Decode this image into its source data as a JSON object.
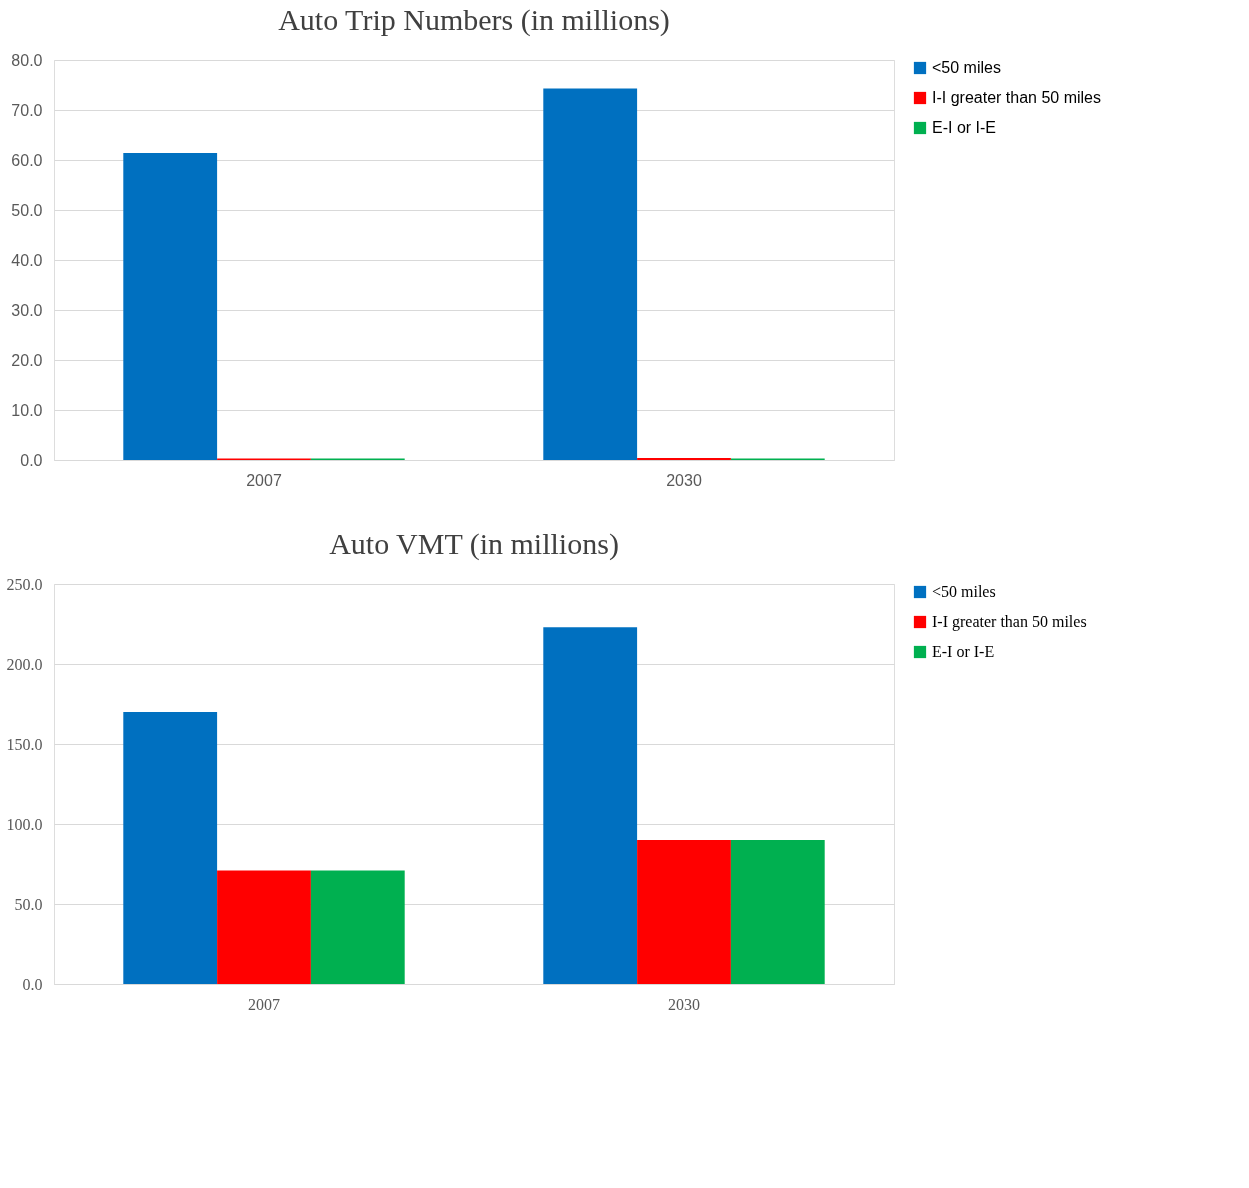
{
  "chart_data": [
    {
      "type": "bar",
      "title": "Auto Trip Numbers (in millions)",
      "categories": [
        "2007",
        "2030"
      ],
      "series": [
        {
          "name": "<50 miles",
          "color": "#0070c0",
          "values": [
            61.4,
            74.3
          ]
        },
        {
          "name": "I-I greater than 50 miles",
          "color": "#ff0000",
          "values": [
            0.3,
            0.4
          ]
        },
        {
          "name": "E-I or I-E",
          "color": "#00b050",
          "values": [
            0.3,
            0.3
          ]
        }
      ],
      "ylim": [
        0,
        80
      ],
      "yticks": [
        {
          "value": 0,
          "label": "0.0"
        },
        {
          "value": 10,
          "label": "10.0"
        },
        {
          "value": 20,
          "label": "20.0"
        },
        {
          "value": 30,
          "label": "30.0"
        },
        {
          "value": 40,
          "label": "40.0"
        },
        {
          "value": 50,
          "label": "50.0"
        },
        {
          "value": 60,
          "label": "60.0"
        },
        {
          "value": 70,
          "label": "70.0"
        },
        {
          "value": 80,
          "label": "80.0"
        }
      ],
      "grid": "y",
      "legend": "right"
    },
    {
      "type": "bar",
      "title": "Auto VMT (in millions)",
      "categories": [
        "2007",
        "2030"
      ],
      "series": [
        {
          "name": "<50 miles",
          "color": "#0070c0",
          "values": [
            170,
            223
          ]
        },
        {
          "name": "I-I greater than 50 miles",
          "color": "#ff0000",
          "values": [
            71,
            90
          ]
        },
        {
          "name": "E-I or I-E",
          "color": "#00b050",
          "values": [
            71,
            90
          ]
        }
      ],
      "ylim": [
        0,
        250
      ],
      "yticks": [
        {
          "value": 0,
          "label": "0.0"
        },
        {
          "value": 50,
          "label": "50.0"
        },
        {
          "value": 100,
          "label": "100.0"
        },
        {
          "value": 150,
          "label": "150.0"
        },
        {
          "value": 200,
          "label": "200.0"
        },
        {
          "value": 250,
          "label": "250.0"
        }
      ],
      "grid": "y",
      "legend": "right"
    }
  ]
}
